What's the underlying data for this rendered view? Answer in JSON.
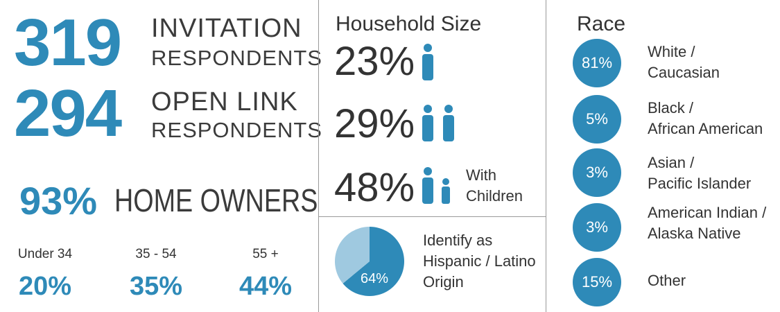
{
  "respondents": {
    "invitation": {
      "count": "319",
      "line1": "INVITATION",
      "line2": "RESPONDENTS"
    },
    "open_link": {
      "count": "294",
      "line1": "OPEN LINK",
      "line2": "RESPONDENTS"
    }
  },
  "home_owners": {
    "percent": "93%",
    "label": "HOME OWNERS"
  },
  "age": [
    {
      "label": "Under 34",
      "percent": "20%"
    },
    {
      "label": "35 - 54",
      "percent": "35%"
    },
    {
      "label": "55 +",
      "percent": "44%"
    }
  ],
  "household": {
    "title": "Household Size",
    "rows": [
      {
        "percent": "23%",
        "icon": "single-person-icon",
        "note": ""
      },
      {
        "percent": "29%",
        "icon": "two-adults-icon",
        "note": ""
      },
      {
        "percent": "48%",
        "icon": "adult-with-child-icon",
        "note_line1": "With",
        "note_line2": "Children"
      }
    ]
  },
  "hispanic": {
    "percent_label": "64%",
    "text_line1": "Identify as",
    "text_line2": "Hispanic / Latino",
    "text_line3": "Origin"
  },
  "race": {
    "title": "Race",
    "items": [
      {
        "percent": "81%",
        "line1": "White /",
        "line2": "Caucasian"
      },
      {
        "percent": "5%",
        "line1": "Black /",
        "line2": "African American"
      },
      {
        "percent": "3%",
        "line1": "Asian /",
        "line2": "Pacific Islander"
      },
      {
        "percent": "3%",
        "line1": "American Indian /",
        "line2": "Alaska Native"
      },
      {
        "percent": "15%",
        "line1": "Other",
        "line2": ""
      }
    ]
  },
  "colors": {
    "accent": "#2e8ab8",
    "pie_light": "#9fc9e0",
    "text": "#333333"
  },
  "chart_data": {
    "type": "pie",
    "title": "",
    "slices": [
      {
        "label": "Identify as Hispanic / Latino Origin",
        "value": 64
      },
      {
        "label": "",
        "value": 36
      }
    ]
  }
}
